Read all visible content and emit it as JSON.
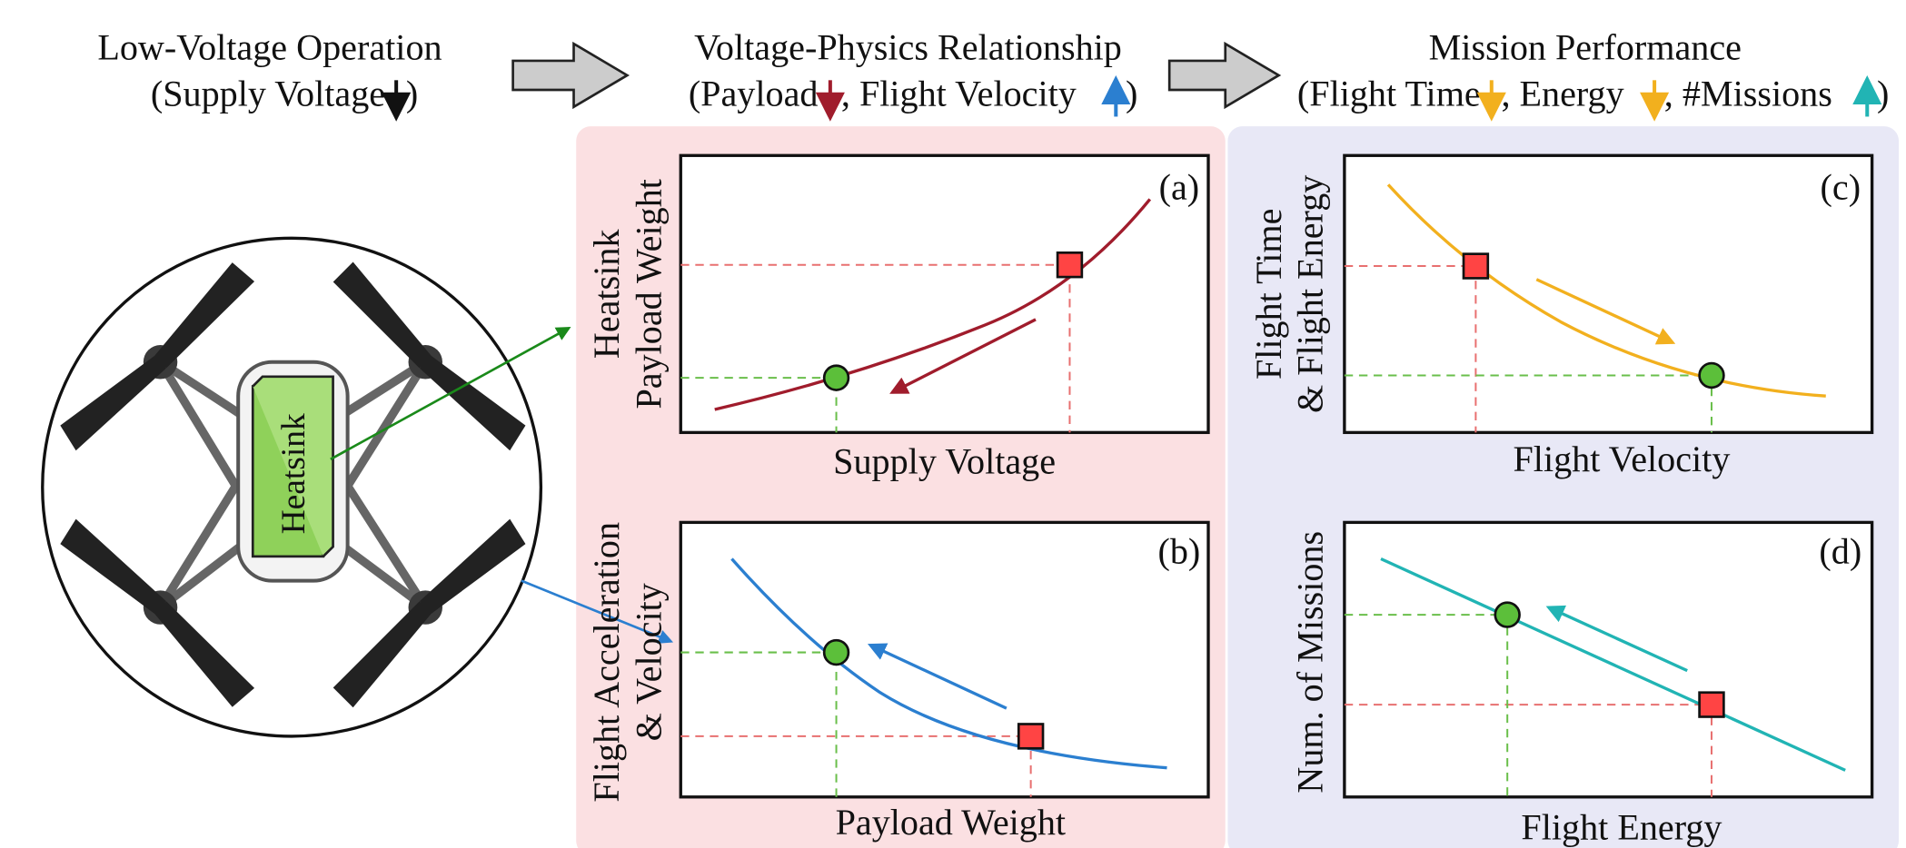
{
  "stages": [
    {
      "title": "Low-Voltage Operation",
      "subtitle_parts": [
        "(Supply Voltage",
        ")"
      ]
    },
    {
      "title": "Voltage-Physics Relationship",
      "subtitle_parts": [
        "(Payload",
        ", Flight Velocity",
        ")"
      ]
    },
    {
      "title": "Mission Performance",
      "subtitle_parts": [
        "(Flight Time",
        ", Energy",
        ", #Missions",
        ")"
      ]
    }
  ],
  "drone": {
    "component": "Heatsink"
  },
  "panels": [
    {
      "tag": "(a)",
      "y_label": [
        "Heatsink",
        "Payload Weight"
      ],
      "x_label": "Supply Voltage"
    },
    {
      "tag": "(b)",
      "y_label": [
        "Flight Acceleration",
        "& Velocity"
      ],
      "x_label": "Payload Weight"
    },
    {
      "tag": "(c)",
      "y_label": [
        "Flight Time",
        "& Flight Energy"
      ],
      "x_label": "Flight Velocity"
    },
    {
      "tag": "(d)",
      "y_label": [
        "Num. of Missions"
      ],
      "x_label": "Flight Energy"
    }
  ]
}
